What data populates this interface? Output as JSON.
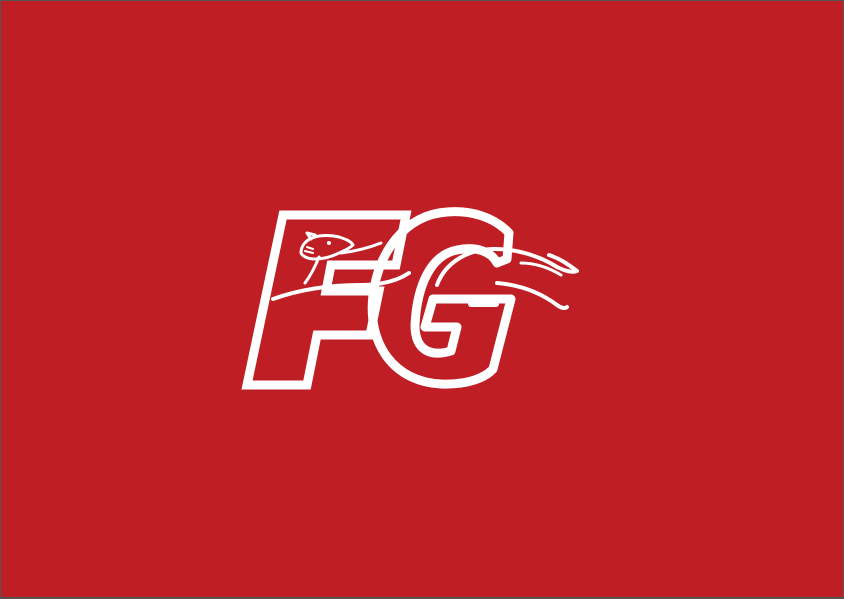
{
  "logo": {
    "letters": "FG",
    "mascot": "cheetah-icon"
  },
  "colors": {
    "background": "#BE1E24",
    "foreground": "#FFFFFF",
    "frame": "#555555"
  }
}
